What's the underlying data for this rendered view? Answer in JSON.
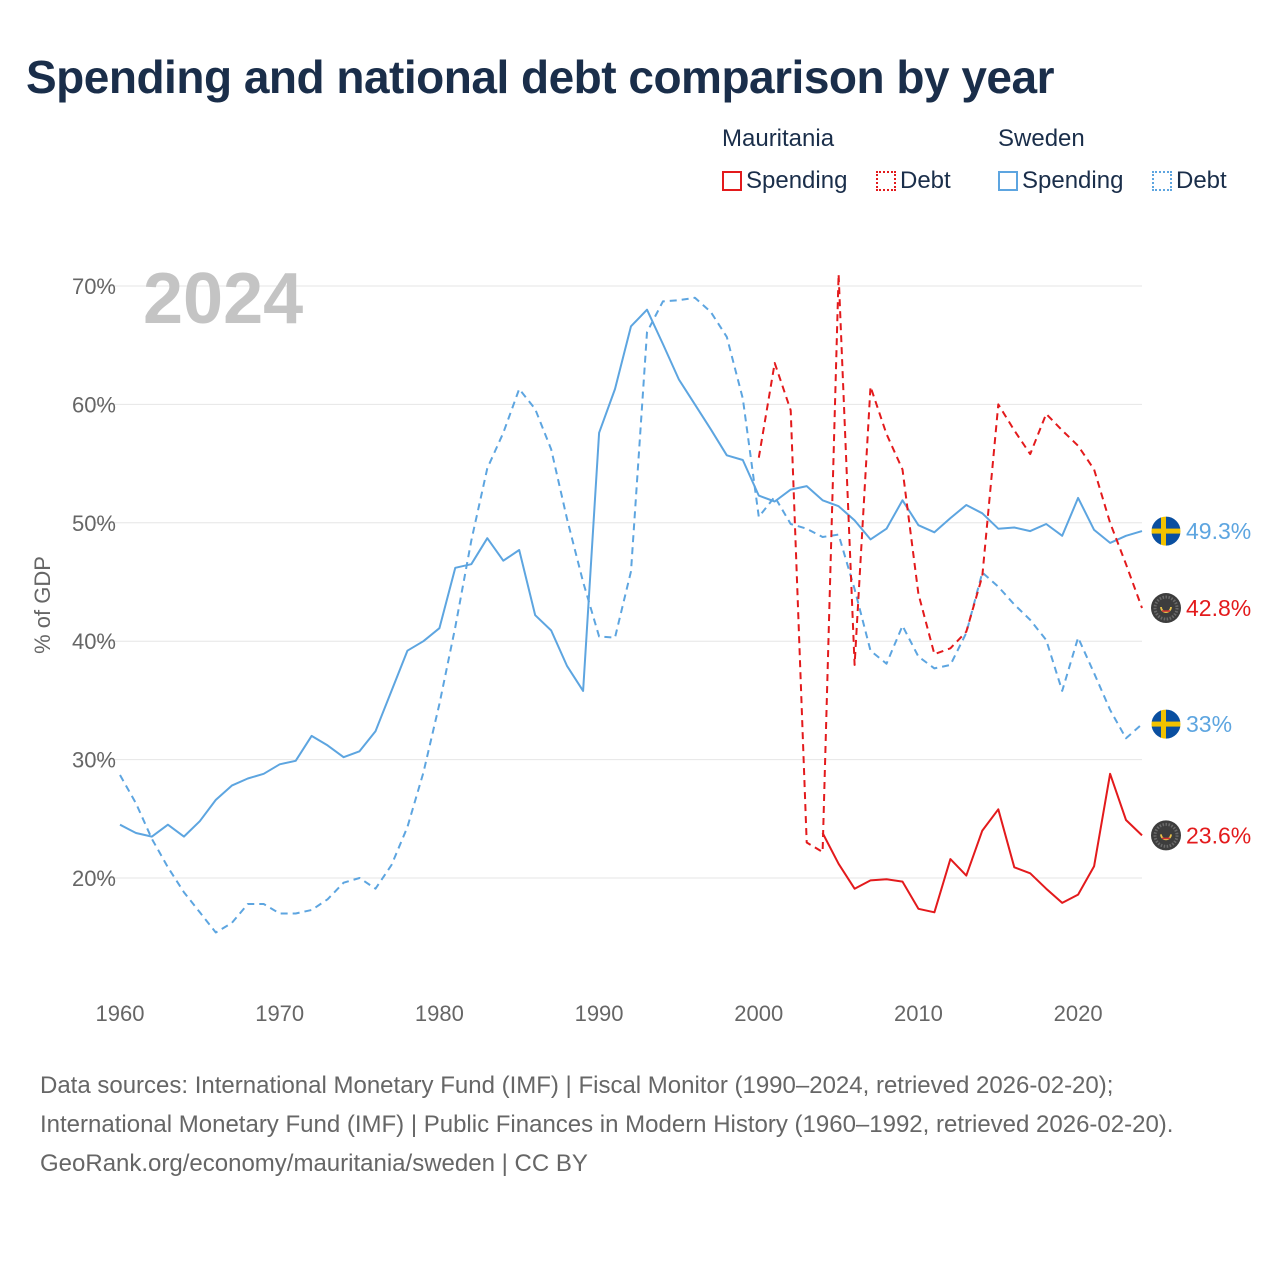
{
  "title": "Spending and national debt comparison by year",
  "legend": {
    "groups": [
      {
        "name": "Mauritania",
        "items": [
          {
            "label": "Spending",
            "style": "solid"
          },
          {
            "label": "Debt",
            "style": "dotted"
          }
        ]
      },
      {
        "name": "Sweden",
        "items": [
          {
            "label": "Spending",
            "style": "solid"
          },
          {
            "label": "Debt",
            "style": "dotted"
          }
        ]
      }
    ]
  },
  "colors": {
    "mauritania": "#e31a1c",
    "sweden": "#5da5e0",
    "year_label": "#c4c4c4",
    "text": "#1a2e4a"
  },
  "chart_data": {
    "type": "line",
    "year_label": "2024",
    "ylabel": "% of GDP",
    "ylim": [
      10,
      72
    ],
    "xlim": [
      1960,
      2024
    ],
    "xticks": [
      1960,
      1970,
      1980,
      1990,
      2000,
      2010,
      2020
    ],
    "yticks": [
      20,
      30,
      40,
      50,
      60,
      70
    ],
    "ytick_labels": [
      "20%",
      "30%",
      "40%",
      "50%",
      "60%",
      "70%"
    ],
    "series": [
      {
        "name": "Sweden Spending",
        "country": "Sweden",
        "metric": "Spending",
        "style": "solid",
        "color": "#5da5e0",
        "start_year": 1960,
        "values": [
          24.5,
          23.8,
          23.5,
          24.5,
          23.5,
          24.8,
          26.6,
          27.8,
          28.4,
          28.8,
          29.6,
          29.9,
          32.0,
          31.2,
          30.2,
          30.7,
          32.4,
          35.8,
          39.2,
          40.0,
          41.1,
          46.2,
          46.5,
          48.7,
          46.8,
          47.7,
          42.2,
          40.9,
          37.9,
          35.8,
          57.6,
          61.3,
          66.6,
          68.0,
          65.1,
          62.1,
          60.0,
          57.9,
          55.7,
          55.3,
          52.3,
          51.8,
          52.8,
          53.1,
          51.9,
          51.4,
          50.2,
          48.6,
          49.5,
          51.9,
          49.8,
          49.2,
          50.4,
          51.5,
          50.8,
          49.5,
          49.6,
          49.3,
          49.9,
          48.9,
          52.1,
          49.4,
          48.3,
          48.9,
          49.3
        ],
        "end_label": "49.3%"
      },
      {
        "name": "Sweden Debt",
        "country": "Sweden",
        "metric": "Debt",
        "style": "dashed",
        "color": "#5da5e0",
        "start_year": 1960,
        "values": [
          28.7,
          26.3,
          23.3,
          20.9,
          18.8,
          17.1,
          15.4,
          16.2,
          17.8,
          17.8,
          17.0,
          17.0,
          17.3,
          18.2,
          19.6,
          20.0,
          19.1,
          21.1,
          24.3,
          28.9,
          34.7,
          41.2,
          48.5,
          54.6,
          57.6,
          61.3,
          59.6,
          56.2,
          50.3,
          45.0,
          40.4,
          40.3,
          45.9,
          66.1,
          68.7,
          68.8,
          69.0,
          67.8,
          65.7,
          60.5,
          50.5,
          52.2,
          49.9,
          49.5,
          48.8,
          49.0,
          44.4,
          39.2,
          38.1,
          41.3,
          38.7,
          37.7,
          38.0,
          40.7,
          45.8,
          44.6,
          43.1,
          41.8,
          40.1,
          35.8,
          40.3,
          37.3,
          34.2,
          31.8,
          33.0
        ],
        "end_label": "33%"
      },
      {
        "name": "Mauritania Spending",
        "country": "Mauritania",
        "metric": "Spending",
        "style": "solid",
        "color": "#e31a1c",
        "start_year": 2004,
        "values": [
          23.8,
          21.2,
          19.1,
          19.8,
          19.9,
          19.7,
          17.4,
          17.1,
          21.6,
          20.2,
          24.0,
          25.8,
          20.9,
          20.4,
          19.1,
          17.9,
          18.6,
          21.0,
          28.8,
          24.9,
          23.6
        ],
        "end_label": "23.6%"
      },
      {
        "name": "Mauritania Debt",
        "country": "Mauritania",
        "metric": "Debt",
        "style": "dashed",
        "color": "#e31a1c",
        "start_year": 2000,
        "values": [
          55.5,
          63.5,
          59.5,
          23.0,
          22.2,
          71.0,
          38.0,
          61.5,
          57.5,
          54.5,
          44.0,
          38.9,
          39.4,
          40.8,
          45.5,
          60.0,
          57.8,
          55.8,
          59.2,
          57.8,
          56.5,
          54.5,
          50.0,
          46.5,
          42.8
        ],
        "end_label": "42.8%"
      }
    ]
  },
  "footer": {
    "sources": "Data sources: International Monetary Fund (IMF) | Fiscal Monitor (1990–2024, retrieved 2026-02-20); International Monetary Fund (IMF) | Public Finances in Modern History (1960–1992, retrieved 2026-02-20).",
    "credit": "GeoRank.org/economy/mauritania/sweden | CC BY"
  }
}
